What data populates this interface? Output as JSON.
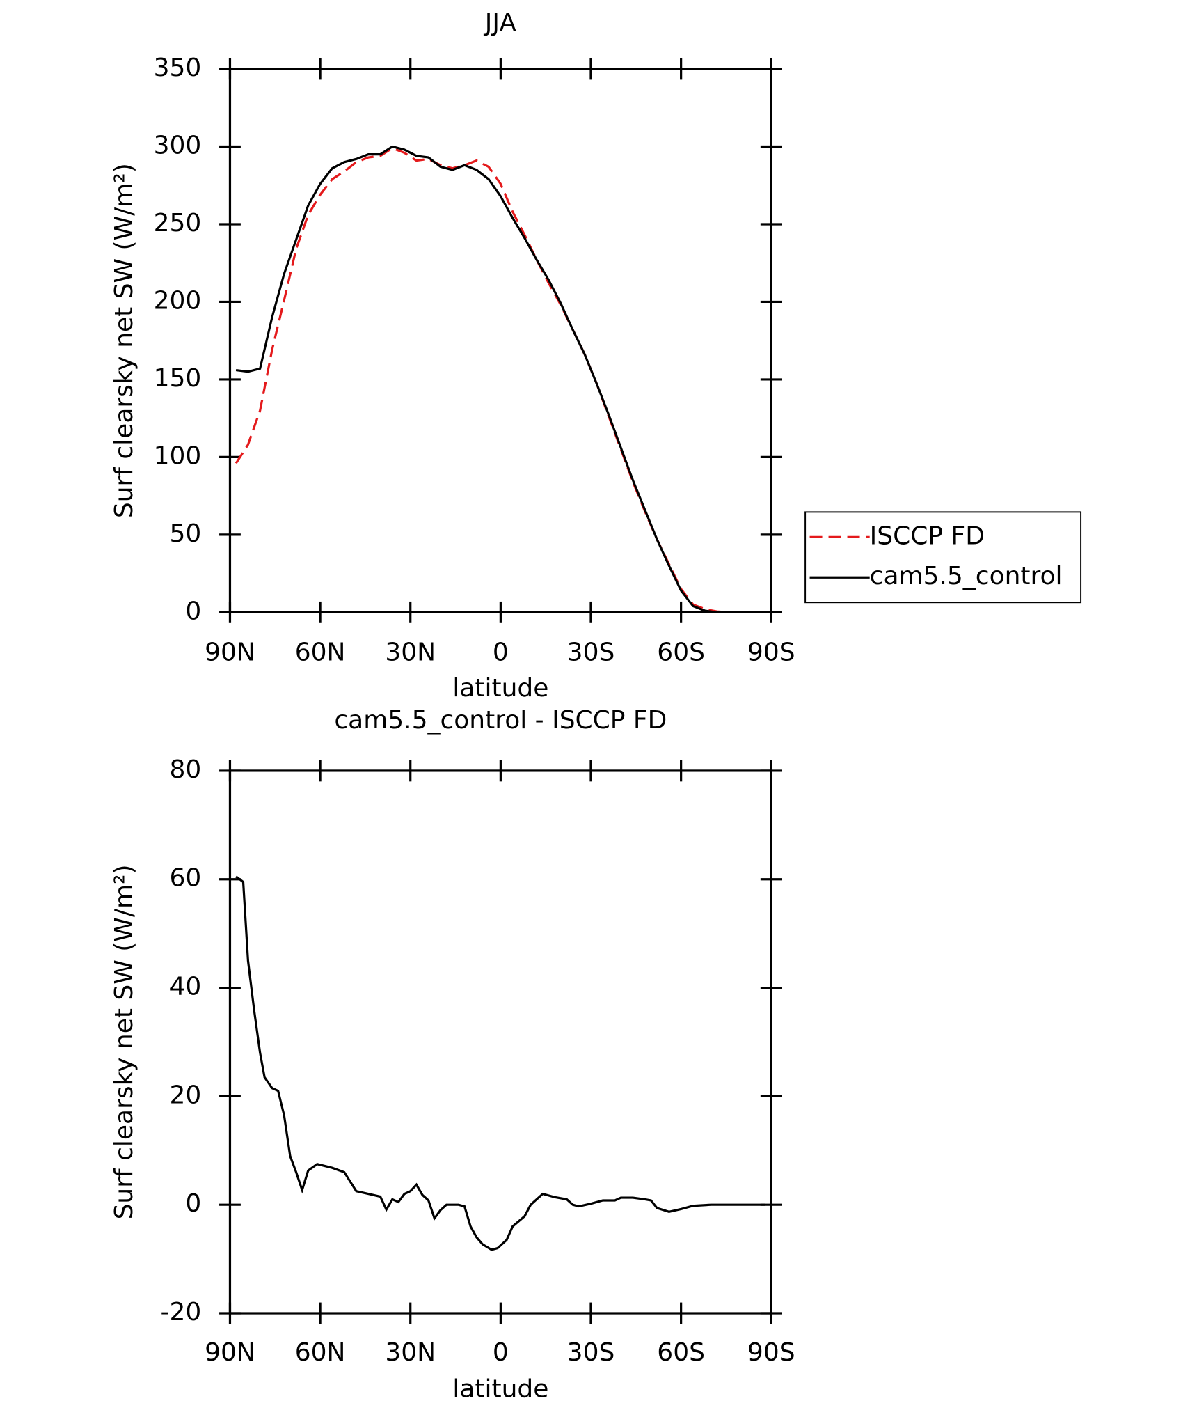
{
  "chart_data": [
    {
      "type": "line",
      "title": "JJA",
      "x_label": "latitude",
      "y_label": "Surf clearsky net SW (W/m²)",
      "xlim": [
        90,
        -90
      ],
      "xticks": [
        {
          "value": 90,
          "label": "90N"
        },
        {
          "value": 60,
          "label": "60N"
        },
        {
          "value": 30,
          "label": "30N"
        },
        0,
        {
          "value": -30,
          "label": "30S"
        },
        {
          "value": -60,
          "label": "60S"
        },
        {
          "value": -90,
          "label": "90S"
        }
      ],
      "ylim": [
        0,
        350
      ],
      "yticks": [
        0,
        50,
        100,
        150,
        200,
        250,
        300,
        350
      ],
      "legend": "right",
      "x": [
        88,
        84,
        80,
        76,
        72,
        68,
        64,
        60,
        56,
        52,
        48,
        44,
        40,
        36,
        32,
        28,
        24,
        20,
        16,
        12,
        8,
        4,
        0,
        -4,
        -8,
        -12,
        -16,
        -20,
        -24,
        -28,
        -32,
        -36,
        -40,
        -44,
        -48,
        -52,
        -56,
        -60,
        -64,
        -68,
        -72,
        -76,
        -80,
        -84,
        -88
      ],
      "series": [
        {
          "name": "ISCCP FD",
          "color": "#e41a1c",
          "dash": "dashed",
          "values": [
            96,
            108,
            130,
            169,
            201,
            234,
            256,
            269,
            279,
            284,
            290,
            293,
            294,
            299,
            296,
            291,
            292,
            288,
            286,
            288,
            291,
            287,
            276,
            258,
            243,
            227,
            212,
            198,
            182,
            166,
            147,
            126,
            105,
            84,
            65,
            47,
            31,
            15,
            5,
            2,
            0.5,
            0,
            0,
            0,
            0
          ]
        },
        {
          "name": "cam5.5_control",
          "color": "#000000",
          "dash": "solid",
          "values": [
            156,
            155,
            157,
            190,
            218,
            240,
            262,
            276,
            286,
            290,
            292,
            295,
            295,
            300,
            298,
            294,
            293,
            287,
            285,
            288,
            285,
            279,
            268,
            254,
            241,
            227,
            214,
            199,
            182,
            166,
            147,
            127,
            106,
            85,
            66,
            47,
            30,
            14,
            4,
            1,
            0,
            0,
            0,
            0,
            0
          ]
        }
      ]
    },
    {
      "type": "line",
      "title": "cam5.5_control - ISCCP FD",
      "x_label": "latitude",
      "y_label": "Surf clearsky net SW (W/m²)",
      "xlim": [
        90,
        -90
      ],
      "xticks": [
        {
          "value": 90,
          "label": "90N"
        },
        {
          "value": 60,
          "label": "60N"
        },
        {
          "value": 30,
          "label": "30N"
        },
        0,
        {
          "value": -30,
          "label": "30S"
        },
        {
          "value": -60,
          "label": "60S"
        },
        {
          "value": -90,
          "label": "90S"
        }
      ],
      "ylim": [
        -20,
        80
      ],
      "yticks": [
        -20,
        0,
        20,
        40,
        60,
        80
      ],
      "x": [
        88,
        85.6,
        84,
        82,
        80,
        78.5,
        76,
        74,
        72,
        70,
        68,
        66,
        64,
        61,
        56,
        52,
        48,
        44,
        40,
        38,
        36,
        34,
        32,
        30,
        28,
        26,
        24,
        22,
        20,
        18,
        14,
        12,
        10,
        8,
        6,
        3,
        1,
        -2,
        -4,
        -8,
        -10,
        -14,
        -18,
        -22,
        -24,
        -26,
        -30,
        -34,
        -38,
        -40,
        -44,
        -48,
        -50,
        -52,
        -56,
        -60,
        -64,
        -70,
        -80,
        -88
      ],
      "series": [
        {
          "name": "cam5.5_control - ISCCP FD",
          "color": "#000000",
          "dash": "solid",
          "values": [
            60.5,
            59.5,
            45,
            36,
            28,
            23.5,
            21.5,
            21,
            16.5,
            9,
            6,
            2.7,
            6.3,
            7.5,
            6.8,
            6,
            2.5,
            2,
            1.5,
            -0.9,
            1,
            0.5,
            2,
            2.5,
            3.7,
            1.8,
            0.8,
            -2.5,
            -1,
            0,
            0,
            -0.3,
            -4,
            -6,
            -7.3,
            -8.3,
            -8,
            -6.5,
            -4,
            -2.1,
            0,
            2,
            1.4,
            1,
            0,
            -0.3,
            0.2,
            0.8,
            0.8,
            1.3,
            1.3,
            1,
            0.8,
            -0.6,
            -1.3,
            -0.8,
            -0.2,
            0,
            0,
            0
          ]
        }
      ]
    }
  ]
}
